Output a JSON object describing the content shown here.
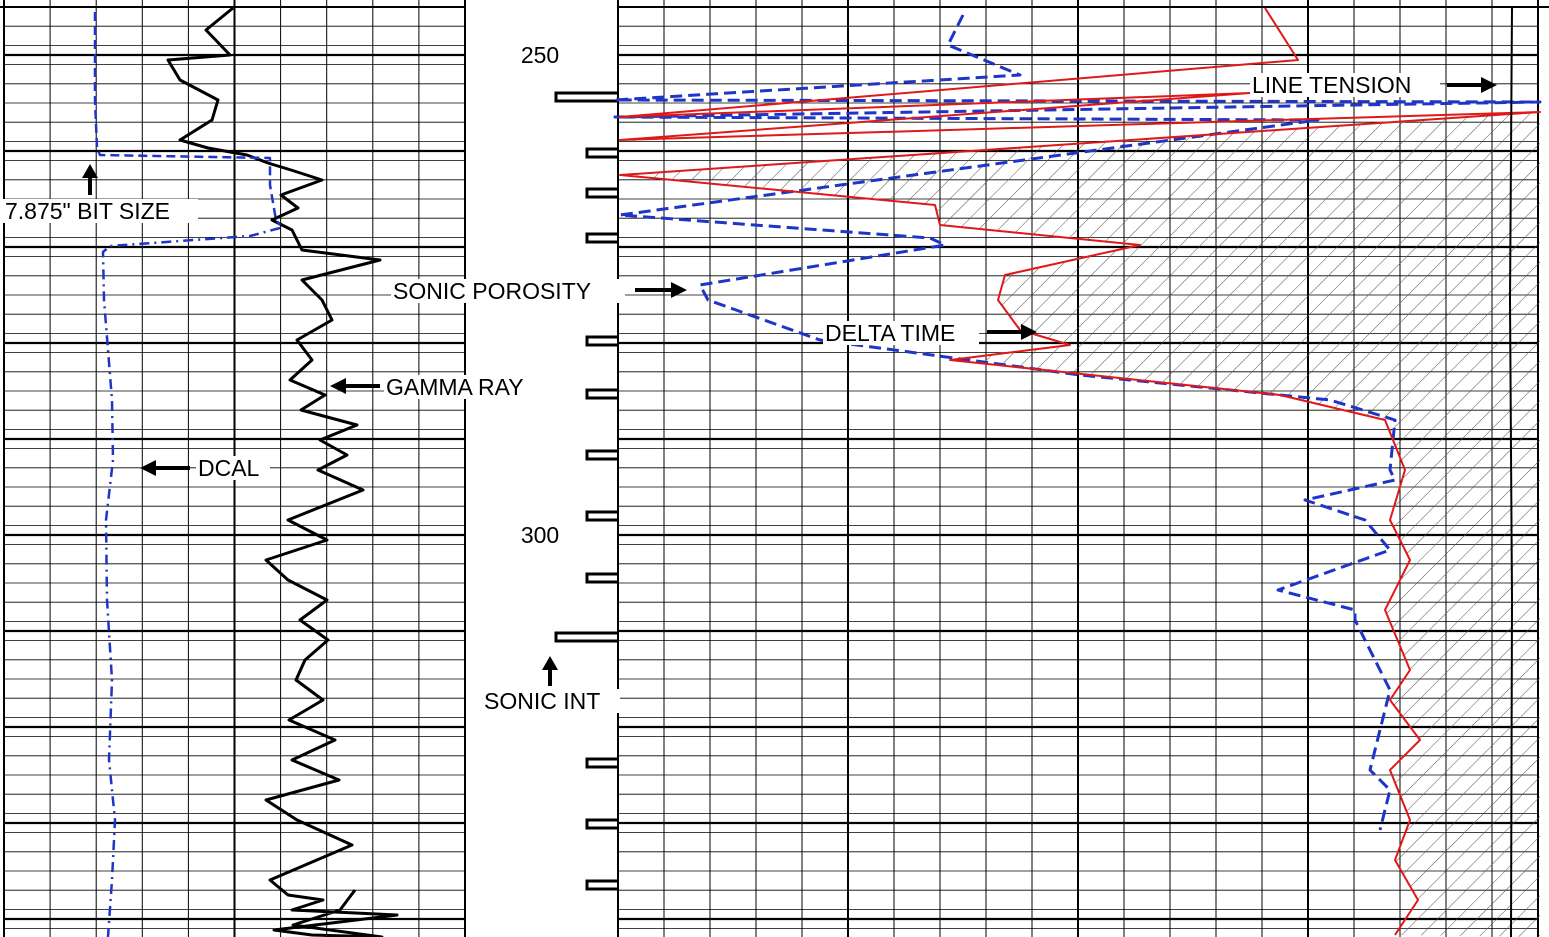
{
  "chart_data": {
    "type": "line",
    "title": "",
    "depth_ticks": [
      "250",
      "300"
    ],
    "annotations": {
      "bit_size": "7.875\" BIT SIZE",
      "dcal": "DCAL",
      "gamma_ray": "GAMMA RAY",
      "sonic_porosity": "SONIC POROSITY",
      "delta_time": "DELTA TIME",
      "line_tension": "LINE TENSION",
      "sonic_int": "SONIC INT"
    },
    "colors": {
      "grid": "#000000",
      "gamma_ray": "#000000",
      "bit_size": "#1f35c8",
      "dcal": "#1f35c8",
      "sonic_porosity": "#1f35c8",
      "delta_time": "#e01818",
      "line_tension": "#000000",
      "hatch": "#555555"
    },
    "series": [
      {
        "name": "GAMMA RAY",
        "x": [
          233,
          206,
          230,
          168,
          180,
          218,
          212,
          180,
          208,
          247,
          268,
          291,
          322,
          281,
          298,
          272,
          292,
          302,
          380,
          302,
          322,
          332,
          297,
          312,
          290,
          325,
          301,
          357,
          320,
          347,
          318,
          363,
          288,
          327,
          266,
          288,
          327,
          300,
          328,
          305,
          296,
          323,
          289,
          335,
          292,
          339,
          266,
          297,
          352,
          270,
          288,
          323,
          292,
          397,
          274,
          312,
          382,
          293,
          340,
          355
        ],
        "y": [
          8,
          30,
          55,
          60,
          80,
          100,
          120,
          140,
          148,
          155,
          163,
          170,
          180,
          195,
          208,
          220,
          230,
          250,
          260,
          280,
          300,
          320,
          340,
          360,
          380,
          395,
          410,
          425,
          440,
          455,
          470,
          490,
          520,
          540,
          560,
          580,
          600,
          620,
          640,
          660,
          680,
          700,
          720,
          740,
          760,
          780,
          800,
          820,
          845,
          880,
          895,
          900,
          910,
          915,
          930,
          935,
          937,
          925,
          910,
          890
        ]
      },
      {
        "name": "7.875\" BIT SIZE",
        "x": [
          95,
          95,
          97,
          100,
          270,
          270,
          276,
          280
        ],
        "y": [
          12,
          100,
          148,
          155,
          158,
          185,
          220,
          225
        ]
      },
      {
        "name": "DCAL",
        "x": [
          280,
          250,
          110,
          103,
          104,
          108,
          112,
          113,
          106,
          107,
          112,
          109,
          115,
          112,
          108
        ],
        "y": [
          228,
          236,
          246,
          252,
          300,
          350,
          400,
          460,
          520,
          600,
          680,
          760,
          820,
          880,
          937
        ]
      },
      {
        "name": "SONIC POROSITY",
        "x": [
          963,
          948,
          960,
          1020,
          615,
          1540,
          615,
          1318,
          620,
          930,
          945,
          700,
          708,
          820,
          1080,
          1330,
          1395,
          1390,
          1395,
          1305,
          1365,
          1390,
          1278,
          1355,
          1355,
          1390,
          1370,
          1390,
          1380
        ],
        "y": [
          15,
          45,
          50,
          75,
          100,
          102,
          117,
          120,
          215,
          238,
          245,
          285,
          300,
          340,
          375,
          400,
          420,
          470,
          480,
          500,
          520,
          550,
          590,
          610,
          620,
          690,
          770,
          790,
          830
        ]
      },
      {
        "name": "DELTA TIME",
        "x": [
          1265,
          1298,
          620,
          1250,
          620,
          1540,
          620,
          935,
          940,
          1140,
          1005,
          998,
          1020,
          1070,
          950,
          1280,
          1385,
          1405,
          1390,
          1410,
          1385,
          1410,
          1390,
          1420,
          1390,
          1410,
          1395,
          1418,
          1395
        ],
        "y": [
          8,
          60,
          117,
          93,
          140,
          112,
          175,
          205,
          225,
          245,
          275,
          300,
          330,
          345,
          360,
          395,
          420,
          470,
          520,
          560,
          610,
          670,
          700,
          740,
          770,
          820,
          860,
          900,
          935
        ]
      },
      {
        "name": "LINE TENSION",
        "x": [
          1512,
          1510,
          1512,
          1511
        ],
        "y": [
          8,
          300,
          600,
          937
        ]
      }
    ]
  }
}
